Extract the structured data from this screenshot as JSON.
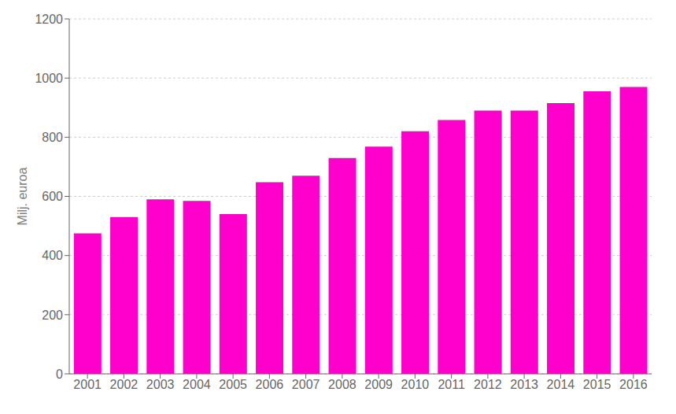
{
  "chart_data": {
    "type": "bar",
    "categories": [
      "2001",
      "2002",
      "2003",
      "2004",
      "2005",
      "2006",
      "2007",
      "2008",
      "2009",
      "2010",
      "2011",
      "2012",
      "2013",
      "2014",
      "2015",
      "2016"
    ],
    "values": [
      475,
      530,
      590,
      585,
      540,
      648,
      670,
      730,
      768,
      820,
      858,
      890,
      890,
      915,
      955,
      970
    ],
    "color": "#FF00CC",
    "ylabel": "Milj. euroa",
    "ylim": [
      0,
      1200
    ],
    "yticks": [
      0,
      200,
      400,
      600,
      800,
      1000,
      1200
    ],
    "grid": true
  }
}
